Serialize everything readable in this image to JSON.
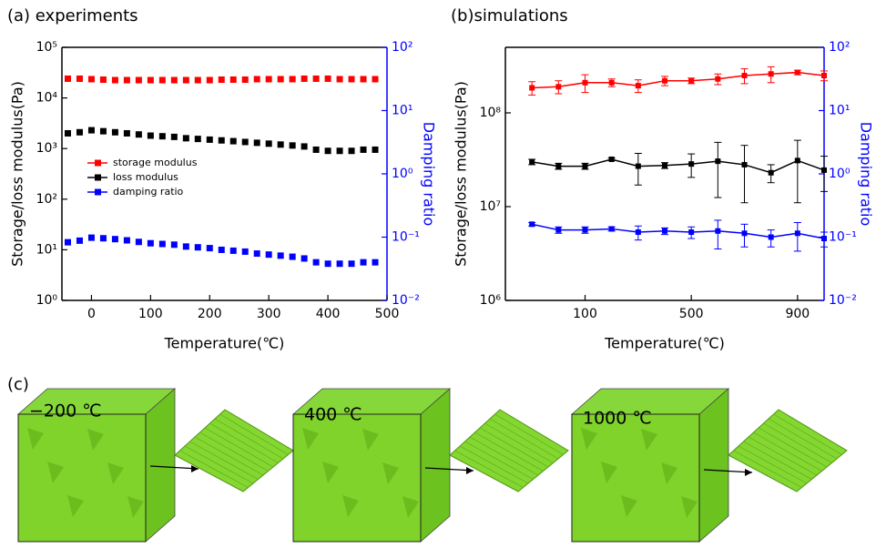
{
  "chart_data": [
    {
      "type": "scatter",
      "title": "(a) experiments",
      "x_label": "Temperature(℃)",
      "y_label": "Storage/loss modulus(Pa)",
      "y2_label": "Damping ratio",
      "y2_color": "#0000ff",
      "xlim": [
        -50,
        500
      ],
      "xticks": [
        0,
        100,
        200,
        300,
        400,
        500
      ],
      "ylim": [
        1,
        100000
      ],
      "ylog": true,
      "yticks": [
        {
          "value": 1,
          "label": "10⁰"
        },
        {
          "value": 10,
          "label": "10¹"
        },
        {
          "value": 100,
          "label": "10²"
        },
        {
          "value": 1000,
          "label": "10³"
        },
        {
          "value": 10000,
          "label": "10⁴"
        },
        {
          "value": 100000,
          "label": "10⁵"
        }
      ],
      "y2lim": [
        0.01,
        100
      ],
      "y2log": true,
      "y2ticks": [
        {
          "value": 0.01,
          "label": "10⁻²"
        },
        {
          "value": 0.1,
          "label": "10⁻¹"
        },
        {
          "value": 1,
          "label": "10⁰"
        },
        {
          "value": 10,
          "label": "10¹"
        },
        {
          "value": 100,
          "label": "10²"
        }
      ],
      "legend": "middle left",
      "x": [
        -40,
        -20,
        0,
        20,
        40,
        60,
        80,
        100,
        120,
        140,
        160,
        180,
        200,
        220,
        240,
        260,
        280,
        300,
        320,
        340,
        360,
        380,
        400,
        420,
        440,
        460,
        480
      ],
      "series": [
        {
          "name": "storage modulus",
          "color": "#ff0000",
          "values": [
            24000,
            24000,
            23500,
            23000,
            22500,
            22500,
            22500,
            22500,
            22500,
            22500,
            22500,
            22500,
            22500,
            23000,
            23000,
            23000,
            23500,
            23500,
            23500,
            23500,
            24000,
            24000,
            24000,
            23500,
            23500,
            23500,
            23500
          ]
        },
        {
          "name": "loss modulus",
          "color": "#000000",
          "values": [
            2000,
            2100,
            2300,
            2200,
            2100,
            2000,
            1900,
            1800,
            1750,
            1700,
            1600,
            1550,
            1500,
            1450,
            1400,
            1350,
            1300,
            1250,
            1200,
            1150,
            1100,
            950,
            900,
            900,
            900,
            950,
            950
          ]
        },
        {
          "name": "damping ratio",
          "color": "#0000ff",
          "axis": "y2",
          "values": [
            0.083,
            0.088,
            0.098,
            0.096,
            0.093,
            0.089,
            0.084,
            0.08,
            0.078,
            0.076,
            0.071,
            0.069,
            0.067,
            0.063,
            0.061,
            0.059,
            0.055,
            0.053,
            0.051,
            0.049,
            0.046,
            0.04,
            0.038,
            0.038,
            0.038,
            0.04,
            0.04
          ]
        }
      ]
    },
    {
      "type": "line",
      "title": "(b)simulations",
      "x_label": "Temperature(℃)",
      "y_label": "Storage/loss modulus(Pa)",
      "y2_label": "Damping ratio",
      "y2_color": "#0000ff",
      "xlim": [
        -200,
        1000
      ],
      "xticks": [
        100,
        500,
        900
      ],
      "ylim": [
        1000000,
        500000000
      ],
      "ylog": true,
      "yticks": [
        {
          "value": 1000000,
          "label": "10⁶"
        },
        {
          "value": 10000000,
          "label": "10⁷"
        },
        {
          "value": 100000000,
          "label": "10⁸"
        }
      ],
      "y2lim": [
        0.01,
        100
      ],
      "y2log": true,
      "y2ticks": [
        {
          "value": 0.01,
          "label": "10⁻²"
        },
        {
          "value": 0.1,
          "label": "10⁻¹"
        },
        {
          "value": 1,
          "label": "10⁰"
        },
        {
          "value": 10,
          "label": "10¹"
        },
        {
          "value": 100,
          "label": "10²"
        }
      ],
      "x": [
        -100,
        0,
        100,
        200,
        300,
        400,
        500,
        600,
        700,
        800,
        900,
        1000
      ],
      "series": [
        {
          "color": "#ff0000",
          "values": [
            185000000,
            190000000,
            210000000,
            210000000,
            195000000,
            220000000,
            220000000,
            230000000,
            250000000,
            260000000,
            270000000,
            250000000
          ],
          "errors": [
            30000000,
            30000000,
            45000000,
            20000000,
            30000000,
            25000000,
            15000000,
            30000000,
            45000000,
            50000000,
            15000000,
            30000000
          ]
        },
        {
          "color": "#000000",
          "values": [
            30000000,
            27000000,
            27000000,
            32000000,
            27000000,
            27500000,
            28500000,
            30500000,
            28000000,
            23000000,
            31000000,
            24500000
          ],
          "errors": [
            2000000,
            2000000,
            2000000,
            1000000,
            10000000,
            2000000,
            8000000,
            18000000,
            17000000,
            5000000,
            20000000,
            10000000
          ]
        },
        {
          "color": "#0000ff",
          "axis": "y2",
          "values": [
            0.16,
            0.13,
            0.13,
            0.135,
            0.12,
            0.125,
            0.12,
            0.125,
            0.115,
            0.1,
            0.115,
            0.095
          ],
          "errors": [
            0.01,
            0.015,
            0.015,
            0.01,
            0.03,
            0.015,
            0.025,
            0.06,
            0.045,
            0.03,
            0.055,
            0.025
          ]
        }
      ]
    }
  ],
  "panel_c": {
    "label": "(c)",
    "temperatures": [
      "−200 ℃",
      "400 ℃",
      "1000 ℃"
    ]
  }
}
